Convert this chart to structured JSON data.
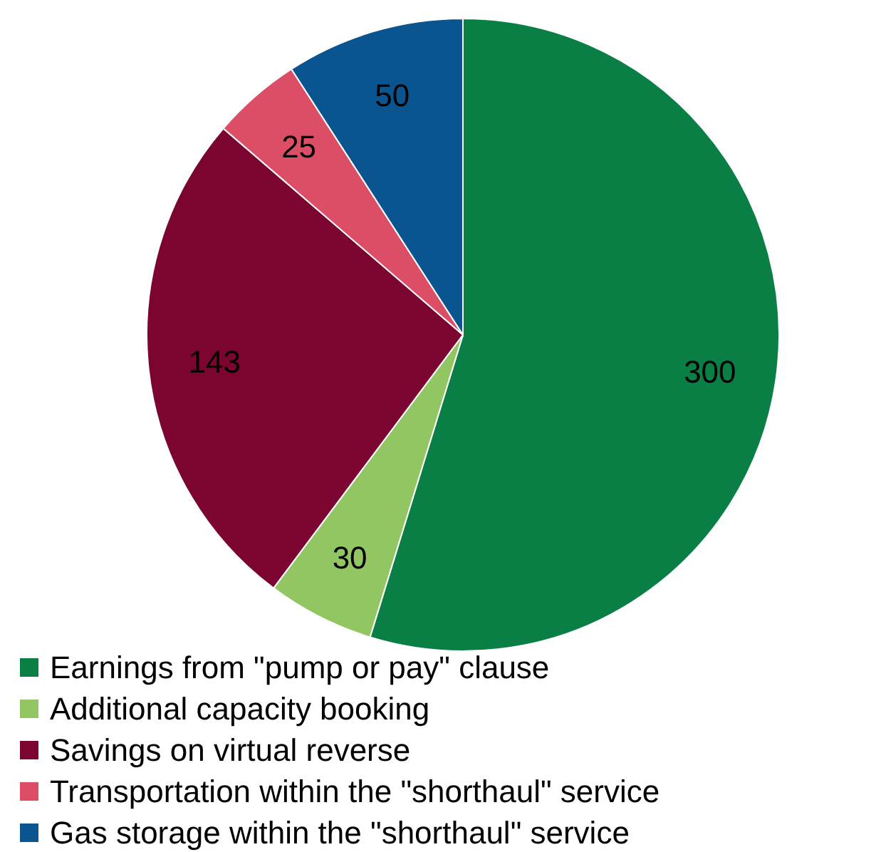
{
  "chart_data": {
    "type": "pie",
    "categories": [
      "Earnings from \"pump or pay\" clause",
      "Additional capacity booking",
      "Savings on virtual reverse",
      "Transportation within the \"shorthaul\" service",
      "Gas storage within the \"shorthaul\" service"
    ],
    "values": [
      300,
      30,
      143,
      25,
      50
    ],
    "colors": [
      "#0a7f45",
      "#92c663",
      "#7b0530",
      "#dc4e66",
      "#0a5590"
    ],
    "data_labels": true,
    "legend": "bottom"
  }
}
